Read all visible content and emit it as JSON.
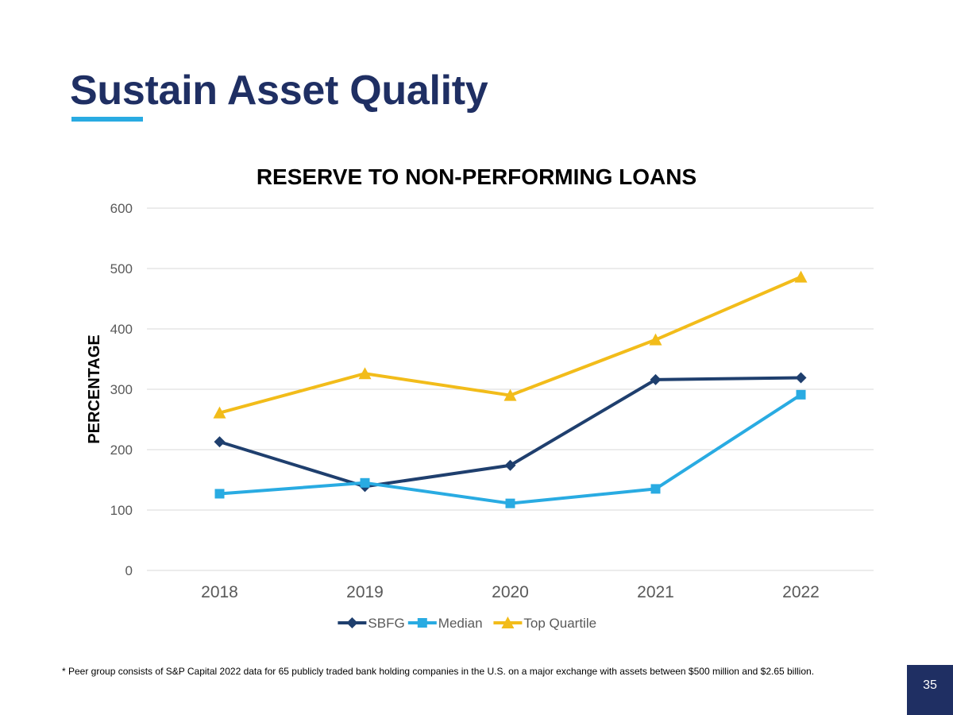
{
  "slide": {
    "title": "Sustain Asset Quality",
    "footnote": "* Peer group consists of S&P Capital 2022 data for 65 publicly traded bank holding companies in the U.S. on a major exchange with assets between $500 million and $2.65 billion.",
    "page_number": "35"
  },
  "colors": {
    "title": "#1f2f63",
    "accent": "#29abe2",
    "page_box": "#1f2f63",
    "grid": "#d9d9d9",
    "tick_text": "#595959"
  },
  "chart_data": {
    "type": "line",
    "title": "RESERVE TO NON-PERFORMING LOANS",
    "ylabel": "PERCENTAGE",
    "xlabel": "",
    "categories": [
      "2018",
      "2019",
      "2020",
      "2021",
      "2022"
    ],
    "ylim": [
      0,
      600
    ],
    "yticks": [
      "0",
      "100",
      "200",
      "300",
      "400",
      "500",
      "600"
    ],
    "grid": "horizontal",
    "legend_position": "bottom",
    "series": [
      {
        "name": "SBFG",
        "values": [
          213,
          139,
          174,
          316,
          319
        ],
        "color": "#1f3f6e",
        "marker": "diamond"
      },
      {
        "name": "Median",
        "values": [
          127,
          145,
          111,
          135,
          291
        ],
        "color": "#29abe2",
        "marker": "square"
      },
      {
        "name": "Top Quartile",
        "values": [
          261,
          326,
          290,
          382,
          486
        ],
        "color": "#f2bc1a",
        "marker": "triangle"
      }
    ]
  }
}
